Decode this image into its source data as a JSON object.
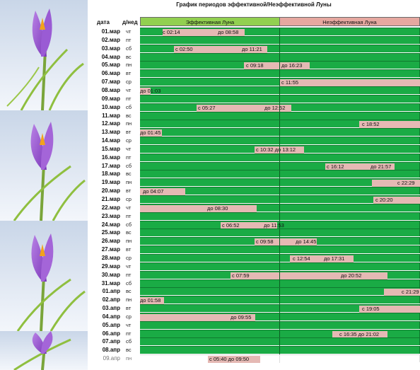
{
  "title": "График  периодов эффективной/Неэффективной Луны",
  "headers": {
    "date": "дата",
    "dow": "д/нед",
    "effective": "Эффективная Луна",
    "ineffective": "Неэффективная Луна"
  },
  "colors": {
    "effective_band": "#92d050",
    "ineffective_band": "#e6a8a0",
    "cell_green": "#1aab45",
    "bar_pink": "#e5b9b4"
  },
  "rows": [
    {
      "date": "01.мар",
      "dow": "чт",
      "labels": [
        "с 02:14",
        "до 08:58"
      ]
    },
    {
      "date": "02.мар",
      "dow": "пт",
      "labels": []
    },
    {
      "date": "03.мар",
      "dow": "сб",
      "labels": [
        "с 02:50",
        "до 11:21"
      ]
    },
    {
      "date": "04.мар",
      "dow": "вс",
      "labels": []
    },
    {
      "date": "05.мар",
      "dow": "пн",
      "labels": [
        "с 09:18",
        "до 16:23"
      ]
    },
    {
      "date": "06.мар",
      "dow": "вт",
      "labels": []
    },
    {
      "date": "07.мар",
      "dow": "ср",
      "labels": [
        "с 11:55"
      ]
    },
    {
      "date": "08.мар",
      "dow": "чт",
      "labels": [
        "до 01:03"
      ]
    },
    {
      "date": "09.мар",
      "dow": "пт",
      "labels": []
    },
    {
      "date": "10.мар",
      "dow": "сб",
      "labels": [
        "с 05:27",
        "до 12:52"
      ]
    },
    {
      "date": "11.мар",
      "dow": "вс",
      "labels": []
    },
    {
      "date": "12.мар",
      "dow": "пн",
      "labels": [
        "с 18:52"
      ]
    },
    {
      "date": "13.мар",
      "dow": "вт",
      "labels": [
        "до 01:45"
      ]
    },
    {
      "date": "14.мар",
      "dow": "ср",
      "labels": []
    },
    {
      "date": "15.мар",
      "dow": "чт",
      "labels": [
        "с 10:32 до 13:12"
      ]
    },
    {
      "date": "16.мар",
      "dow": "пт",
      "labels": []
    },
    {
      "date": "17.мар",
      "dow": "сб",
      "labels": [
        "с 16:12",
        "до 21:57"
      ]
    },
    {
      "date": "18.мар",
      "dow": "вс",
      "labels": []
    },
    {
      "date": "19.мар",
      "dow": "пн",
      "labels": [
        "с 22:29"
      ]
    },
    {
      "date": "20.мар",
      "dow": "вт",
      "labels": [
        "до 04:07"
      ]
    },
    {
      "date": "21.мар",
      "dow": "ср",
      "labels": [
        "с 20:20"
      ]
    },
    {
      "date": "22.мар",
      "dow": "чт",
      "labels": [
        "до 08:30"
      ]
    },
    {
      "date": "23.мар",
      "dow": "пт",
      "labels": []
    },
    {
      "date": "24.мар",
      "dow": "сб",
      "labels": [
        "с 06:52",
        "до 11:53"
      ]
    },
    {
      "date": "25.мар",
      "dow": "вс",
      "labels": []
    },
    {
      "date": "26.мар",
      "dow": "пн",
      "labels": [
        "с 09:58",
        "до 14:45"
      ]
    },
    {
      "date": "27.мар",
      "dow": "вт",
      "labels": []
    },
    {
      "date": "28.мар",
      "dow": "ср",
      "labels": [
        "с 12:54",
        "до 17:31"
      ]
    },
    {
      "date": "29.мар",
      "dow": "чт",
      "labels": []
    },
    {
      "date": "30.мар",
      "dow": "пт",
      "labels": [
        "с 07:59",
        "до 20:52"
      ]
    },
    {
      "date": "31.мар",
      "dow": "сб",
      "labels": []
    },
    {
      "date": "01.апр",
      "dow": "вс",
      "labels": [
        "с 21:29"
      ]
    },
    {
      "date": "02.апр",
      "dow": "пн",
      "labels": [
        "до 01:58"
      ]
    },
    {
      "date": "03.апр",
      "dow": "вт",
      "labels": [
        "с 19:05"
      ]
    },
    {
      "date": "04.апр",
      "dow": "ср",
      "labels": [
        "до 09:55"
      ]
    },
    {
      "date": "05.апр",
      "dow": "чт",
      "labels": []
    },
    {
      "date": "06.апр",
      "dow": "пт",
      "labels": [
        "с 16:35 до 21:02"
      ]
    },
    {
      "date": "07.апр",
      "dow": "сб",
      "labels": []
    },
    {
      "date": "08.апр",
      "dow": "вс",
      "labels": []
    },
    {
      "date": "09.апр",
      "dow": "пн",
      "labels": [
        "с 05:40 до 09:50"
      ]
    }
  ]
}
